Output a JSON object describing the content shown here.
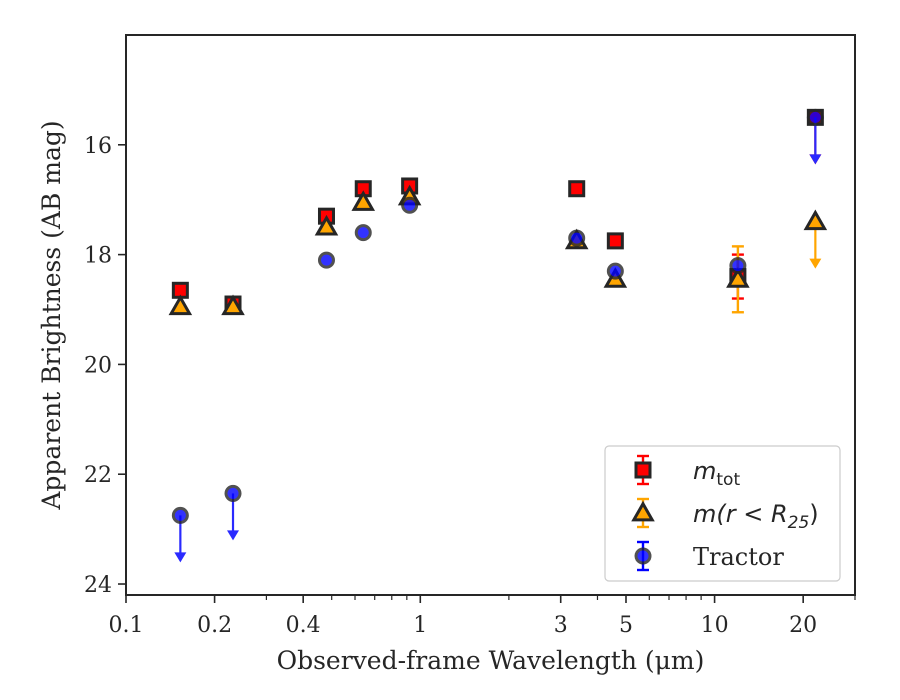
{
  "chart_data": {
    "type": "scatter",
    "xlabel": "Observed-frame Wavelength (μm)",
    "ylabel": "Apparent Brightness (AB mag)",
    "x_scale": "log",
    "xlim": [
      0.1,
      30
    ],
    "ylim": [
      24.2,
      14.0
    ],
    "y_inverted": true,
    "x_ticks": [
      {
        "value": 0.1,
        "label": "0.1"
      },
      {
        "value": 0.2,
        "label": "0.2"
      },
      {
        "value": 0.4,
        "label": "0.4"
      },
      {
        "value": 1,
        "label": "1"
      },
      {
        "value": 3,
        "label": "3"
      },
      {
        "value": 5,
        "label": "5"
      },
      {
        "value": 10,
        "label": "10"
      },
      {
        "value": 20,
        "label": "20"
      }
    ],
    "y_ticks": [
      {
        "value": 16,
        "label": "16"
      },
      {
        "value": 18,
        "label": "18"
      },
      {
        "value": 20,
        "label": "20"
      },
      {
        "value": 22,
        "label": "22"
      },
      {
        "value": 24,
        "label": "24"
      }
    ],
    "grid": false,
    "legend_position": "bottom-right",
    "series": [
      {
        "name": "m_tot",
        "legend_label": {
          "base": "m",
          "sub": "tot"
        },
        "marker": "square",
        "fill": "#ff0000",
        "edge": "#262626",
        "errcolor": "#ff0000",
        "points": [
          {
            "x": 0.153,
            "y": 18.65
          },
          {
            "x": 0.231,
            "y": 18.9
          },
          {
            "x": 0.48,
            "y": 17.3
          },
          {
            "x": 0.64,
            "y": 16.8
          },
          {
            "x": 0.92,
            "y": 16.75
          },
          {
            "x": 3.4,
            "y": 16.8
          },
          {
            "x": 4.6,
            "y": 17.75
          },
          {
            "x": 12.0,
            "y": 18.4,
            "err": 0.4
          },
          {
            "x": 22.0,
            "y": 15.5,
            "upper_limit": true
          }
        ]
      },
      {
        "name": "m(r<R25)",
        "legend_label": {
          "base": "m(r < R",
          "sub": "25",
          "tail": ")"
        },
        "marker": "triangle",
        "fill": "#ffa500",
        "edge": "#262626",
        "errcolor": "#ffa500",
        "points": [
          {
            "x": 0.153,
            "y": 18.95
          },
          {
            "x": 0.231,
            "y": 18.95
          },
          {
            "x": 0.48,
            "y": 17.5
          },
          {
            "x": 0.64,
            "y": 17.05
          },
          {
            "x": 0.92,
            "y": 16.95
          },
          {
            "x": 3.4,
            "y": 17.75
          },
          {
            "x": 4.6,
            "y": 18.45
          },
          {
            "x": 12.0,
            "y": 18.45,
            "err": 0.6
          },
          {
            "x": 22.0,
            "y": 17.4,
            "upper_limit": true
          }
        ]
      },
      {
        "name": "Tractor",
        "legend_label": {
          "base": "Tractor"
        },
        "marker": "circle",
        "fill": "#0000ff",
        "edge": "#262626",
        "errcolor": "#0000ff",
        "points": [
          {
            "x": 0.153,
            "y": 22.75,
            "upper_limit": true
          },
          {
            "x": 0.231,
            "y": 22.35,
            "upper_limit": true
          },
          {
            "x": 0.48,
            "y": 18.1
          },
          {
            "x": 0.64,
            "y": 17.6
          },
          {
            "x": 0.92,
            "y": 17.1
          },
          {
            "x": 3.4,
            "y": 17.7
          },
          {
            "x": 4.6,
            "y": 18.3
          },
          {
            "x": 12.0,
            "y": 18.2
          },
          {
            "x": 22.0,
            "y": 15.5,
            "upper_limit": true
          }
        ]
      }
    ]
  }
}
